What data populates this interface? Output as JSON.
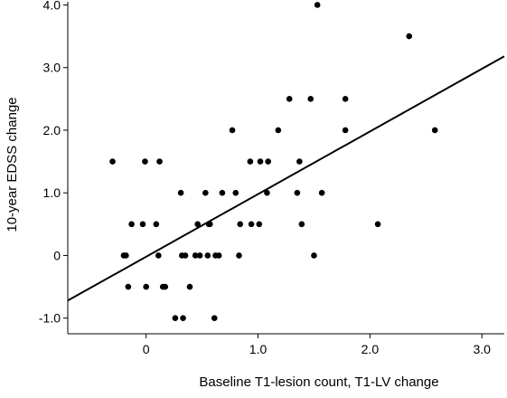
{
  "chart_data": {
    "type": "scatter",
    "title": "",
    "xlabel": "Baseline T1-lesion count, T1-LV change",
    "ylabel": "10-year EDSS change",
    "xlim": [
      -0.7,
      3.2
    ],
    "ylim": [
      -1.25,
      4.05
    ],
    "x_ticks": [
      {
        "value": 0,
        "label": "0"
      },
      {
        "value": 1,
        "label": "1.0"
      },
      {
        "value": 2,
        "label": "2.0"
      },
      {
        "value": 3,
        "label": "3.0"
      }
    ],
    "y_ticks": [
      {
        "value": -1,
        "label": "-1.0"
      },
      {
        "value": 0,
        "label": "0"
      },
      {
        "value": 1,
        "label": "1.0"
      },
      {
        "value": 2,
        "label": "2.0"
      },
      {
        "value": 3,
        "label": "3.0"
      },
      {
        "value": 4,
        "label": "4.0"
      }
    ],
    "grid": false,
    "marker_color": "#000000",
    "series": [
      {
        "points": [
          [
            -0.3,
            1.5
          ],
          [
            -0.2,
            0
          ],
          [
            -0.18,
            0
          ],
          [
            -0.16,
            -0.5
          ],
          [
            -0.13,
            0.5
          ],
          [
            -0.03,
            0.5
          ],
          [
            -0.01,
            1.5
          ],
          [
            0.0,
            -0.5
          ],
          [
            0.09,
            0.5
          ],
          [
            0.11,
            0
          ],
          [
            0.12,
            1.5
          ],
          [
            0.15,
            -0.5
          ],
          [
            0.17,
            -0.5
          ],
          [
            0.26,
            -1.0
          ],
          [
            0.31,
            1.0
          ],
          [
            0.32,
            0
          ],
          [
            0.33,
            -1.0
          ],
          [
            0.35,
            0
          ],
          [
            0.39,
            -0.5
          ],
          [
            0.44,
            0
          ],
          [
            0.46,
            0.5
          ],
          [
            0.48,
            0
          ],
          [
            0.53,
            1.0
          ],
          [
            0.55,
            0
          ],
          [
            0.56,
            0.5
          ],
          [
            0.57,
            0.5
          ],
          [
            0.61,
            -1.0
          ],
          [
            0.62,
            0
          ],
          [
            0.65,
            0
          ],
          [
            0.68,
            1.0
          ],
          [
            0.77,
            2.0
          ],
          [
            0.8,
            1.0
          ],
          [
            0.83,
            0
          ],
          [
            0.84,
            0.5
          ],
          [
            0.93,
            1.5
          ],
          [
            0.94,
            0.5
          ],
          [
            1.01,
            0.5
          ],
          [
            1.02,
            1.5
          ],
          [
            1.08,
            1.0
          ],
          [
            1.09,
            1.5
          ],
          [
            1.18,
            2.0
          ],
          [
            1.28,
            2.5
          ],
          [
            1.35,
            1.0
          ],
          [
            1.37,
            1.5
          ],
          [
            1.39,
            0.5
          ],
          [
            1.47,
            2.5
          ],
          [
            1.5,
            0
          ],
          [
            1.53,
            4.0
          ],
          [
            1.57,
            1.0
          ],
          [
            1.78,
            2.0
          ],
          [
            1.78,
            2.5
          ],
          [
            2.07,
            0.5
          ],
          [
            2.35,
            3.5
          ],
          [
            2.58,
            2.0
          ]
        ]
      }
    ],
    "fit_line": {
      "x": [
        -0.7,
        3.2
      ],
      "y": [
        -0.72,
        3.18
      ]
    }
  }
}
